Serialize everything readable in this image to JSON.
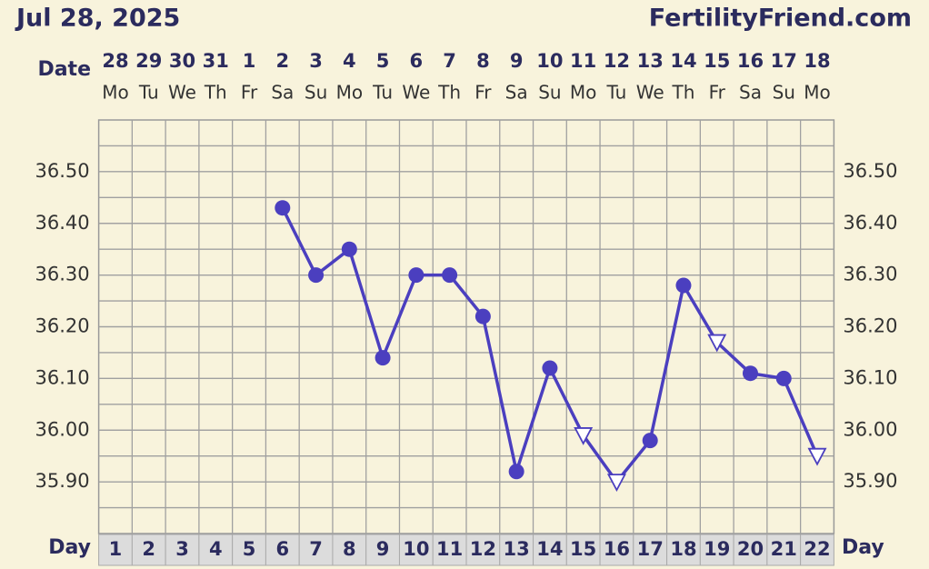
{
  "chart_data": {
    "type": "line",
    "title": "Jul 28, 2025",
    "brand": "FertilityFriend.com",
    "date_label": "Date",
    "day_label": "Day",
    "dates": [
      "28",
      "29",
      "30",
      "31",
      "1",
      "2",
      "3",
      "4",
      "5",
      "6",
      "7",
      "8",
      "9",
      "10",
      "11",
      "12",
      "13",
      "14",
      "15",
      "16",
      "17",
      "18"
    ],
    "weekdays": [
      "Mo",
      "Tu",
      "We",
      "Th",
      "Fr",
      "Sa",
      "Su",
      "Mo",
      "Tu",
      "We",
      "Th",
      "Fr",
      "Sa",
      "Su",
      "Mo",
      "Tu",
      "We",
      "Th",
      "Fr",
      "Sa",
      "Su",
      "Mo"
    ],
    "categories": [
      "1",
      "2",
      "3",
      "4",
      "5",
      "6",
      "7",
      "8",
      "9",
      "10",
      "11",
      "12",
      "13",
      "14",
      "15",
      "16",
      "17",
      "18",
      "19",
      "20",
      "21",
      "22"
    ],
    "series": [
      {
        "color": "#4b3fbf",
        "values": [
          null,
          null,
          null,
          null,
          null,
          36.43,
          36.3,
          36.35,
          36.14,
          36.3,
          36.3,
          36.22,
          35.92,
          36.12,
          35.99,
          35.9,
          35.98,
          36.28,
          36.17,
          36.11,
          36.1,
          35.95
        ],
        "markers": [
          null,
          null,
          null,
          null,
          null,
          "circle",
          "circle",
          "circle",
          "circle",
          "circle",
          "circle",
          "circle",
          "circle",
          "circle",
          "triangle",
          "triangle",
          "circle",
          "circle",
          "triangle",
          "circle",
          "circle",
          "triangle"
        ]
      }
    ],
    "ylim": [
      35.8,
      36.6
    ],
    "yticks": [
      {
        "value": 35.9,
        "label": "35.90"
      },
      {
        "value": 36.0,
        "label": "36.00"
      },
      {
        "value": 36.1,
        "label": "36.10"
      },
      {
        "value": 36.2,
        "label": "36.20"
      },
      {
        "value": 36.3,
        "label": "36.30"
      },
      {
        "value": 36.4,
        "label": "36.40"
      },
      {
        "value": 36.5,
        "label": "36.50"
      }
    ],
    "grid": true
  }
}
